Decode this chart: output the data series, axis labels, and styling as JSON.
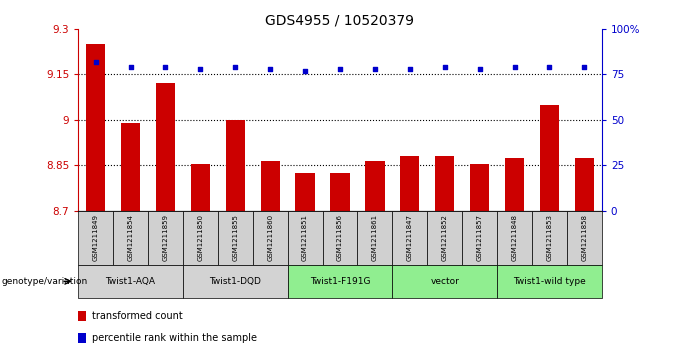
{
  "title": "GDS4955 / 10520379",
  "samples": [
    "GSM1211849",
    "GSM1211854",
    "GSM1211859",
    "GSM1211850",
    "GSM1211855",
    "GSM1211860",
    "GSM1211851",
    "GSM1211856",
    "GSM1211861",
    "GSM1211847",
    "GSM1211852",
    "GSM1211857",
    "GSM1211848",
    "GSM1211853",
    "GSM1211858"
  ],
  "bar_values": [
    9.25,
    8.99,
    9.12,
    8.855,
    9.0,
    8.865,
    8.825,
    8.825,
    8.865,
    8.88,
    8.88,
    8.855,
    8.875,
    9.05,
    8.875
  ],
  "percentile_values": [
    82,
    79,
    79,
    78,
    79,
    78,
    77,
    78,
    78,
    78,
    79,
    78,
    79,
    79,
    79
  ],
  "ylim_left": [
    8.7,
    9.3
  ],
  "ylim_right": [
    0,
    100
  ],
  "yticks_left": [
    8.7,
    8.85,
    9.0,
    9.15,
    9.3
  ],
  "yticks_left_labels": [
    "8.7",
    "8.85",
    "9",
    "9.15",
    "9.3"
  ],
  "yticks_right": [
    0,
    25,
    50,
    75,
    100
  ],
  "yticks_right_labels": [
    "0",
    "25",
    "50",
    "75",
    "100%"
  ],
  "groups": [
    {
      "label": "Twist1-AQA",
      "start": 0,
      "end": 3,
      "color": "#d3d3d3"
    },
    {
      "label": "Twist1-DQD",
      "start": 3,
      "end": 6,
      "color": "#d3d3d3"
    },
    {
      "label": "Twist1-F191G",
      "start": 6,
      "end": 9,
      "color": "#90ee90"
    },
    {
      "label": "vector",
      "start": 9,
      "end": 12,
      "color": "#90ee90"
    },
    {
      "label": "Twist1-wild type",
      "start": 12,
      "end": 15,
      "color": "#90ee90"
    }
  ],
  "bar_color": "#cc0000",
  "dot_color": "#0000cc",
  "bar_width": 0.55,
  "genotype_label": "genotype/variation",
  "legend_bar_label": "transformed count",
  "legend_dot_label": "percentile rank within the sample",
  "title_fontsize": 10,
  "axis_color_left": "#cc0000",
  "axis_color_right": "#0000cc",
  "grid_color": "black",
  "background_color": "#ffffff",
  "sample_box_color": "#d0d0d0"
}
